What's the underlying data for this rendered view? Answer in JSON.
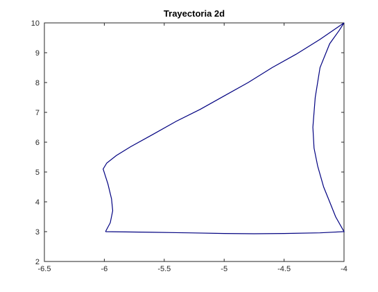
{
  "chart_data": {
    "type": "line",
    "title": "Trayectoria 2d",
    "xlabel": "",
    "ylabel": "",
    "xlim": [
      -6.5,
      -4
    ],
    "ylim": [
      2,
      10
    ],
    "x_ticks": [
      -6.5,
      -6,
      -5.5,
      -5,
      -4.5,
      -4
    ],
    "y_ticks": [
      2,
      3,
      4,
      5,
      6,
      7,
      8,
      9,
      10
    ],
    "x_tick_labels": [
      "-6.5",
      "-6",
      "-5.5",
      "-5",
      "-4.5",
      "-4"
    ],
    "y_tick_labels": [
      "2",
      "3",
      "4",
      "5",
      "6",
      "7",
      "8",
      "9",
      "10"
    ],
    "grid": false,
    "series": [
      {
        "color": "#000080",
        "x": [
          -5.99,
          -5.95,
          -5.93,
          -5.94,
          -5.97,
          -6.01,
          -5.98,
          -5.9,
          -5.78,
          -5.6,
          -5.4,
          -5.2,
          -5.0,
          -4.8,
          -4.6,
          -4.4,
          -4.2,
          -4.0,
          -4.04,
          -4.12,
          -4.2,
          -4.24,
          -4.26,
          -4.25,
          -4.22,
          -4.17,
          -4.12,
          -4.07,
          -4.0,
          -4.2,
          -4.5,
          -4.75,
          -5.0,
          -5.3,
          -5.6,
          -5.99
        ],
        "y": [
          3.0,
          3.3,
          3.7,
          4.1,
          4.6,
          5.1,
          5.3,
          5.55,
          5.85,
          6.25,
          6.7,
          7.1,
          7.55,
          8.0,
          8.5,
          8.95,
          9.45,
          10.0,
          9.75,
          9.3,
          8.5,
          7.5,
          6.5,
          5.8,
          5.2,
          4.5,
          4.0,
          3.5,
          3.0,
          2.96,
          2.94,
          2.93,
          2.94,
          2.96,
          2.98,
          3.0
        ]
      }
    ]
  }
}
